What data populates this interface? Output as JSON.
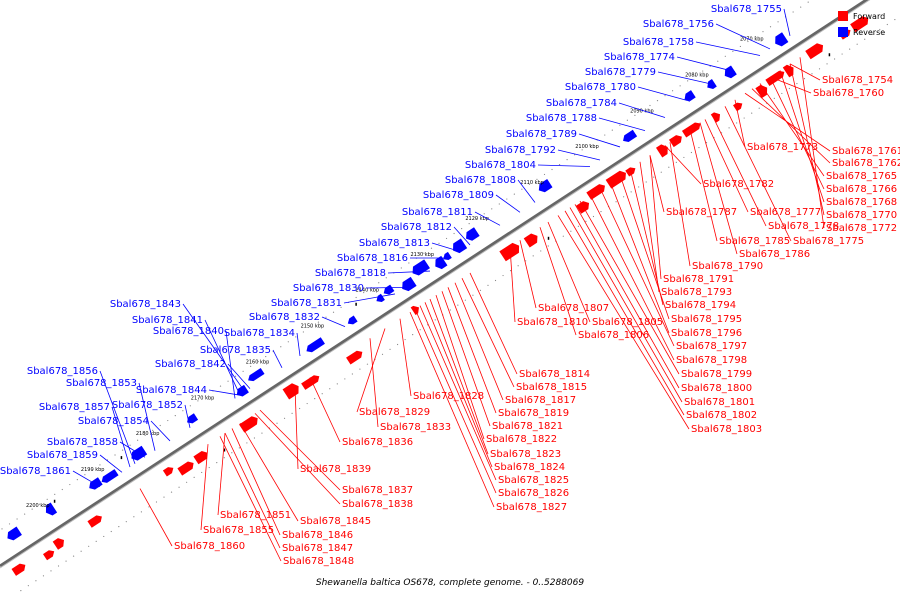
{
  "title": "Shewanella baltica OS678, complete genome. - 0..5288069",
  "legend": [
    {
      "label": "Forward",
      "color": "#ff0000"
    },
    {
      "label": "Reverse",
      "color": "#0000ff"
    }
  ],
  "colors": {
    "forward": "#ff0000",
    "reverse": "#0000ff",
    "backbone": "#666666"
  },
  "ticks": [
    "2070 kbp",
    "2080 kbp",
    "2090 kbp",
    "2100 kbp",
    "2110 kbp",
    "2120 kbp",
    "2130 kbp",
    "2140 kbp",
    "2150 kbp",
    "2160 kbp",
    "2170 kbp",
    "2180 kbp",
    "2190 kbp",
    "2200 kbp"
  ],
  "reverse_genes": [
    "Sbal678_1755",
    "Sbal678_1756",
    "Sbal678_1758",
    "Sbal678_1774",
    "Sbal678_1779",
    "Sbal678_1780",
    "Sbal678_1784",
    "Sbal678_1788",
    "Sbal678_1789",
    "Sbal678_1792",
    "Sbal678_1804",
    "Sbal678_1808",
    "Sbal678_1809",
    "Sbal678_1811",
    "Sbal678_1812",
    "Sbal678_1813",
    "Sbal678_1816",
    "Sbal678_1818",
    "Sbal678_1830",
    "Sbal678_1831",
    "Sbal678_1832",
    "Sbal678_1843",
    "Sbal678_1841",
    "Sbal678_1840",
    "Sbal678_1834",
    "Sbal678_1835",
    "Sbal678_1842",
    "Sbal678_1856",
    "Sbal678_1853",
    "Sbal678_1844",
    "Sbal678_1857",
    "Sbal678_1852",
    "Sbal678_1854",
    "Sbal678_1858",
    "Sbal678_1859",
    "Sbal678_1861"
  ],
  "forward_genes": [
    "Sbal678_1754",
    "Sbal678_1760",
    "Sbal678_1773",
    "Sbal678_1761",
    "Sbal678_1762",
    "Sbal678_1765",
    "Sbal678_1766",
    "Sbal678_1768",
    "Sbal678_1770",
    "Sbal678_1772",
    "Sbal678_1782",
    "Sbal678_1777",
    "Sbal678_1778",
    "Sbal678_1775",
    "Sbal678_1785",
    "Sbal678_1786",
    "Sbal678_1787",
    "Sbal678_1790",
    "Sbal678_1791",
    "Sbal678_1793",
    "Sbal678_1794",
    "Sbal678_1795",
    "Sbal678_1796",
    "Sbal678_1797",
    "Sbal678_1798",
    "Sbal678_1799",
    "Sbal678_1800",
    "Sbal678_1801",
    "Sbal678_1802",
    "Sbal678_1803",
    "Sbal678_1807",
    "Sbal678_1810",
    "Sbal678_1805",
    "Sbal678_1806",
    "Sbal678_1814",
    "Sbal678_1815",
    "Sbal678_1817",
    "Sbal678_1819",
    "Sbal678_1821",
    "Sbal678_1822",
    "Sbal678_1823",
    "Sbal678_1824",
    "Sbal678_1825",
    "Sbal678_1826",
    "Sbal678_1827",
    "Sbal678_1828",
    "Sbal678_1829",
    "Sbal678_1833",
    "Sbal678_1836",
    "Sbal678_1839",
    "Sbal678_1837",
    "Sbal678_1838",
    "Sbal678_1851",
    "Sbal678_1845",
    "Sbal678_1855",
    "Sbal678_1846",
    "Sbal678_1847",
    "Sbal678_1848",
    "Sbal678_1860"
  ]
}
